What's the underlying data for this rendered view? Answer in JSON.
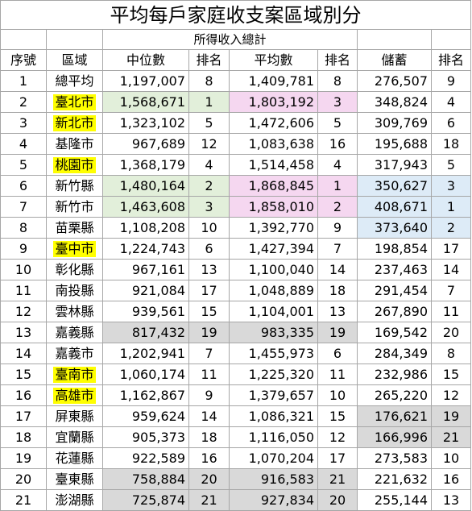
{
  "title": "平均每戶家庭收支案區域別分",
  "group_header": "所得收入總計",
  "headers": {
    "seq": "序號",
    "region": "區域",
    "median": "中位數",
    "median_rank": "排名",
    "mean": "平均數",
    "mean_rank": "排名",
    "savings": "儲蓄",
    "savings_rank": "排名"
  },
  "colors": {
    "gray": "#d9d9d9",
    "green": "#e2efda",
    "pink": "#f5d7f0",
    "blue": "#ddebf7",
    "yellow": "#ffff00"
  },
  "rows": [
    {
      "seq": "1",
      "region": "總平均",
      "median": "1,197,007",
      "median_rank": "8",
      "mean": "1,409,781",
      "mean_rank": "8",
      "savings": "276,507",
      "savings_rank": "9"
    },
    {
      "seq": "2",
      "region": "臺北市",
      "median": "1,568,671",
      "median_rank": "1",
      "mean": "1,803,192",
      "mean_rank": "3",
      "savings": "348,824",
      "savings_rank": "4"
    },
    {
      "seq": "3",
      "region": "新北市",
      "median": "1,323,102",
      "median_rank": "5",
      "mean": "1,472,606",
      "mean_rank": "5",
      "savings": "309,769",
      "savings_rank": "6"
    },
    {
      "seq": "4",
      "region": "基隆市",
      "median": "967,689",
      "median_rank": "12",
      "mean": "1,083,638",
      "mean_rank": "16",
      "savings": "195,688",
      "savings_rank": "18"
    },
    {
      "seq": "5",
      "region": "桃園市",
      "median": "1,368,179",
      "median_rank": "4",
      "mean": "1,514,458",
      "mean_rank": "4",
      "savings": "317,943",
      "savings_rank": "5"
    },
    {
      "seq": "6",
      "region": "新竹縣",
      "median": "1,480,164",
      "median_rank": "2",
      "mean": "1,868,845",
      "mean_rank": "1",
      "savings": "350,627",
      "savings_rank": "3"
    },
    {
      "seq": "7",
      "region": "新竹市",
      "median": "1,463,608",
      "median_rank": "3",
      "mean": "1,858,010",
      "mean_rank": "2",
      "savings": "408,671",
      "savings_rank": "1"
    },
    {
      "seq": "8",
      "region": "苗栗縣",
      "median": "1,108,208",
      "median_rank": "10",
      "mean": "1,392,770",
      "mean_rank": "9",
      "savings": "373,640",
      "savings_rank": "2"
    },
    {
      "seq": "9",
      "region": "臺中市",
      "median": "1,224,743",
      "median_rank": "6",
      "mean": "1,427,394",
      "mean_rank": "7",
      "savings": "198,854",
      "savings_rank": "17"
    },
    {
      "seq": "10",
      "region": "彰化縣",
      "median": "967,161",
      "median_rank": "13",
      "mean": "1,100,040",
      "mean_rank": "14",
      "savings": "237,463",
      "savings_rank": "14"
    },
    {
      "seq": "11",
      "region": "南投縣",
      "median": "921,084",
      "median_rank": "17",
      "mean": "1,048,889",
      "mean_rank": "18",
      "savings": "291,454",
      "savings_rank": "7"
    },
    {
      "seq": "12",
      "region": "雲林縣",
      "median": "939,561",
      "median_rank": "15",
      "mean": "1,104,001",
      "mean_rank": "13",
      "savings": "267,890",
      "savings_rank": "11"
    },
    {
      "seq": "13",
      "region": "嘉義縣",
      "median": "817,432",
      "median_rank": "19",
      "mean": "983,335",
      "mean_rank": "19",
      "savings": "169,542",
      "savings_rank": "20"
    },
    {
      "seq": "14",
      "region": "嘉義市",
      "median": "1,202,941",
      "median_rank": "7",
      "mean": "1,455,973",
      "mean_rank": "6",
      "savings": "284,349",
      "savings_rank": "8"
    },
    {
      "seq": "15",
      "region": "臺南市",
      "median": "1,060,174",
      "median_rank": "11",
      "mean": "1,225,320",
      "mean_rank": "11",
      "savings": "232,986",
      "savings_rank": "15"
    },
    {
      "seq": "16",
      "region": "高雄市",
      "median": "1,162,867",
      "median_rank": "9",
      "mean": "1,379,657",
      "mean_rank": "10",
      "savings": "265,220",
      "savings_rank": "12"
    },
    {
      "seq": "17",
      "region": "屏東縣",
      "median": "959,624",
      "median_rank": "14",
      "mean": "1,086,321",
      "mean_rank": "15",
      "savings": "176,621",
      "savings_rank": "19"
    },
    {
      "seq": "18",
      "region": "宜蘭縣",
      "median": "905,373",
      "median_rank": "18",
      "mean": "1,116,050",
      "mean_rank": "12",
      "savings": "166,996",
      "savings_rank": "21"
    },
    {
      "seq": "19",
      "region": "花蓮縣",
      "median": "922,589",
      "median_rank": "16",
      "mean": "1,070,204",
      "mean_rank": "17",
      "savings": "273,583",
      "savings_rank": "10"
    },
    {
      "seq": "20",
      "region": "臺東縣",
      "median": "758,884",
      "median_rank": "20",
      "mean": "916,583",
      "mean_rank": "21",
      "savings": "221,632",
      "savings_rank": "16"
    },
    {
      "seq": "21",
      "region": "澎湖縣",
      "median": "725,874",
      "median_rank": "21",
      "mean": "927,834",
      "mean_rank": "20",
      "savings": "255,144",
      "savings_rank": "13"
    }
  ]
}
